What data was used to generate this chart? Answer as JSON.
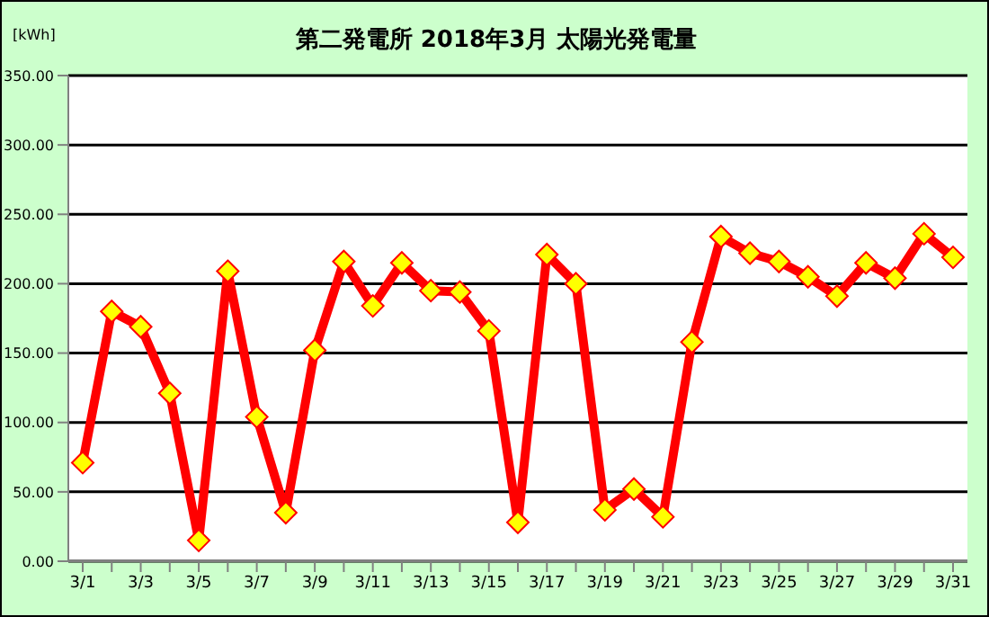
{
  "chart_data": {
    "type": "line",
    "title": "第二発電所  2018年3月  太陽光発電量",
    "ylabel": "[kWh]",
    "categories": [
      "3/1",
      null,
      "3/3",
      null,
      "3/5",
      null,
      "3/7",
      null,
      "3/9",
      null,
      "3/11",
      null,
      "3/13",
      null,
      "3/15",
      null,
      "3/17",
      null,
      "3/19",
      null,
      "3/21",
      null,
      "3/23",
      null,
      "3/25",
      null,
      "3/27",
      null,
      "3/29",
      null,
      "3/31"
    ],
    "series": [
      {
        "color": "#ff0000",
        "values": [
          71,
          180,
          169,
          121,
          15,
          209,
          104,
          35,
          152,
          216,
          184,
          215,
          195,
          194,
          166,
          28,
          221,
          200,
          37,
          52,
          32,
          158,
          234,
          222,
          216,
          205,
          191,
          215,
          204,
          236,
          219
        ]
      }
    ],
    "ylim": [
      0,
      350
    ],
    "yticks": [
      {
        "value": 0,
        "label": "0.00"
      },
      {
        "value": 50,
        "label": "50.00"
      },
      {
        "value": 100,
        "label": "100.00"
      },
      {
        "value": 150,
        "label": "150.00"
      },
      {
        "value": 200,
        "label": "200.00"
      },
      {
        "value": 250,
        "label": "250.00"
      },
      {
        "value": 300,
        "label": "300.00"
      },
      {
        "value": 350,
        "label": "350.00"
      }
    ],
    "grid": "y",
    "marker": "diamond",
    "line_style": "solid"
  }
}
